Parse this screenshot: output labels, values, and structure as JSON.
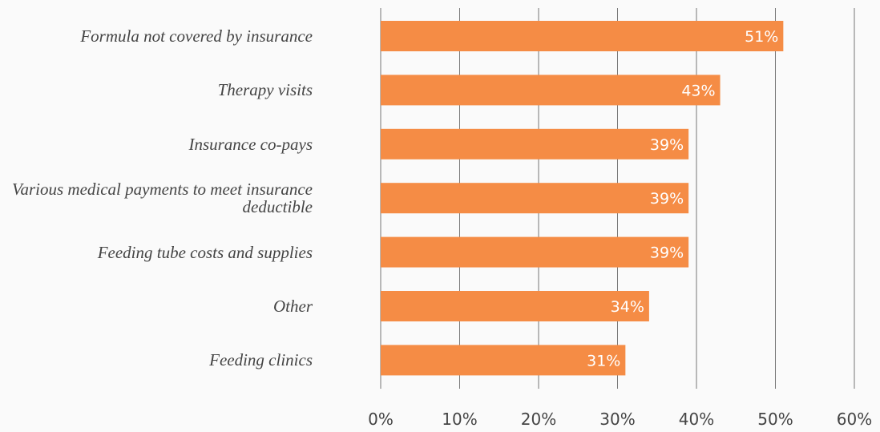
{
  "chart_data": {
    "type": "barh",
    "categories": [
      "Formula not covered by insurance",
      "Therapy visits",
      "Insurance co-pays",
      "Various medical payments to meet insurance deductible",
      "Feeding tube costs and supplies",
      "Other",
      "Feeding clinics"
    ],
    "values": [
      51,
      43,
      39,
      39,
      39,
      34,
      31
    ],
    "value_labels": [
      "51%",
      "43%",
      "39%",
      "39%",
      "39%",
      "34%",
      "31%"
    ],
    "color": "#f58c45",
    "xlim": [
      0,
      60
    ],
    "xticks": [
      {
        "value": 0,
        "label": "0%"
      },
      {
        "value": 10,
        "label": "10%"
      },
      {
        "value": 20,
        "label": "20%"
      },
      {
        "value": 30,
        "label": "30%"
      },
      {
        "value": 40,
        "label": "40%"
      },
      {
        "value": 50,
        "label": "50%"
      },
      {
        "value": 60,
        "label": "60%"
      }
    ],
    "grid": true
  }
}
